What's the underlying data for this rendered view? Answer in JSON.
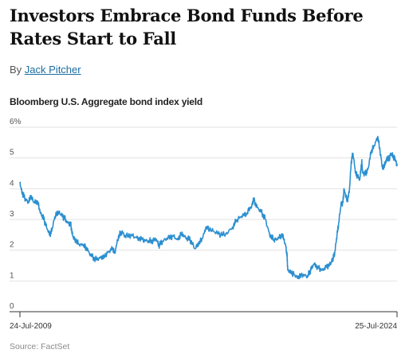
{
  "article": {
    "headline": "Investors Embrace Bond Funds Before Rates Start to Fall",
    "byline_prefix": "By",
    "author": "Jack Pitcher"
  },
  "colors": {
    "line": "#2b8fd0",
    "grid": "#e2e2e2",
    "axis": "#333333",
    "link": "#1a6ca1"
  },
  "chart_data": {
    "type": "line",
    "title": "Bloomberg U.S. Aggregate bond index yield",
    "unit": "%",
    "ylim": [
      0,
      6
    ],
    "yticks": [
      0,
      1,
      2,
      3,
      4,
      5,
      6
    ],
    "ytick_labels": [
      "0",
      "1",
      "2",
      "3",
      "4",
      "5",
      "6%"
    ],
    "grid": true,
    "x_start_label": "24-Jul-2009",
    "x_end_label": "25-Jul-2024",
    "source": "Source: FactSet",
    "series": [
      {
        "x": [
          "2009-07-24",
          "2009-08-20",
          "2009-10-01",
          "2009-11-20",
          "2009-12-31",
          "2010-02-15",
          "2010-04-05",
          "2010-05-20",
          "2010-07-01",
          "2010-08-15",
          "2010-09-30",
          "2010-10-31",
          "2010-12-15",
          "2011-01-31",
          "2011-03-15",
          "2011-04-30",
          "2011-06-15",
          "2011-07-31",
          "2011-08-31",
          "2011-10-01",
          "2011-11-30",
          "2012-01-31",
          "2012-03-20",
          "2012-05-15",
          "2012-07-25",
          "2012-09-30",
          "2012-11-30",
          "2013-01-31",
          "2013-03-31",
          "2013-05-02",
          "2013-06-25",
          "2013-08-15",
          "2013-09-30",
          "2013-12-31",
          "2014-03-15",
          "2014-05-31",
          "2014-08-15",
          "2014-10-15",
          "2014-12-31",
          "2015-02-01",
          "2015-03-31",
          "2015-06-15",
          "2015-08-31",
          "2015-10-31",
          "2015-12-31",
          "2016-02-28",
          "2016-04-30",
          "2016-07-08",
          "2016-09-01",
          "2016-10-31",
          "2016-12-15",
          "2017-03-15",
          "2017-06-01",
          "2017-09-08",
          "2017-12-31",
          "2018-02-28",
          "2018-05-15",
          "2018-07-31",
          "2018-10-15",
          "2018-11-08",
          "2018-12-31",
          "2019-03-01",
          "2019-05-01",
          "2019-07-01",
          "2019-08-31",
          "2019-10-15",
          "2019-12-31",
          "2020-02-15",
          "2020-03-09",
          "2020-03-20",
          "2020-04-30",
          "2020-06-30",
          "2020-08-05",
          "2020-10-15",
          "2020-12-31",
          "2021-02-15",
          "2021-03-31",
          "2021-05-31",
          "2021-07-31",
          "2021-09-30",
          "2021-11-30",
          "2021-12-31",
          "2022-01-31",
          "2022-02-28",
          "2022-03-31",
          "2022-05-03",
          "2022-05-31",
          "2022-06-15",
          "2022-07-31",
          "2022-08-31",
          "2022-09-30",
          "2022-10-24",
          "2022-11-30",
          "2022-12-31",
          "2023-01-31",
          "2023-02-28",
          "2023-03-15",
          "2023-04-30",
          "2023-05-31",
          "2023-07-15",
          "2023-08-31",
          "2023-10-19",
          "2023-11-30",
          "2023-12-27",
          "2024-01-31",
          "2024-02-29",
          "2024-03-31",
          "2024-04-25",
          "2024-05-31",
          "2024-06-30",
          "2024-07-25"
        ],
        "values": [
          4.2,
          3.9,
          3.7,
          3.55,
          3.75,
          3.55,
          3.6,
          3.2,
          3.05,
          2.75,
          2.5,
          2.65,
          3.1,
          3.25,
          3.15,
          3.05,
          2.9,
          2.85,
          2.45,
          2.35,
          2.2,
          2.15,
          2.05,
          1.85,
          1.7,
          1.75,
          1.8,
          1.95,
          2.05,
          1.9,
          2.45,
          2.6,
          2.45,
          2.5,
          2.4,
          2.35,
          2.3,
          2.3,
          2.35,
          2.15,
          2.3,
          2.4,
          2.45,
          2.35,
          2.55,
          2.4,
          2.35,
          2.05,
          2.2,
          2.4,
          2.75,
          2.65,
          2.55,
          2.5,
          2.7,
          2.95,
          3.1,
          3.2,
          3.45,
          3.65,
          3.4,
          3.25,
          3.0,
          2.5,
          2.35,
          2.35,
          2.5,
          2.2,
          1.85,
          1.35,
          1.3,
          1.2,
          1.1,
          1.2,
          1.15,
          1.35,
          1.55,
          1.45,
          1.35,
          1.45,
          1.55,
          1.7,
          1.9,
          2.4,
          2.9,
          3.5,
          3.55,
          4.0,
          3.6,
          3.9,
          4.9,
          5.15,
          4.5,
          4.4,
          4.3,
          4.9,
          4.5,
          4.5,
          4.65,
          5.2,
          5.4,
          5.7,
          5.1,
          4.65,
          4.8,
          5.0,
          4.95,
          5.15,
          5.05,
          4.95,
          4.75
        ]
      }
    ]
  }
}
